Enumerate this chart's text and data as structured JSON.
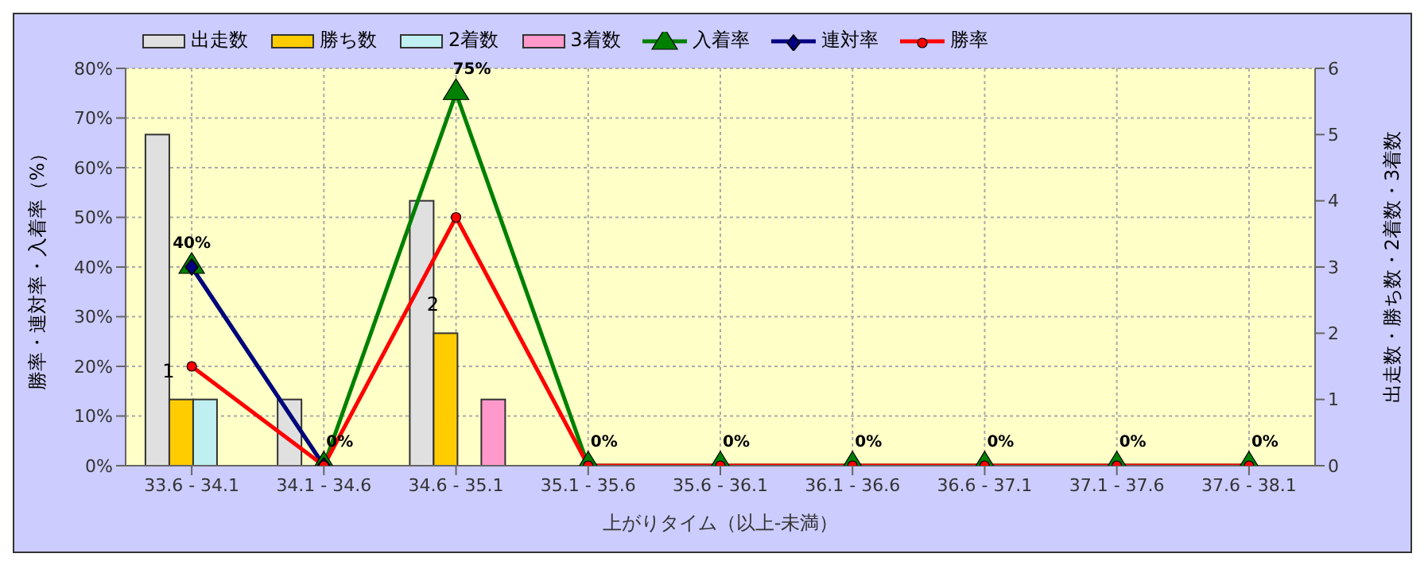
{
  "chart_data": {
    "type": "bar",
    "xlabel": "上がりタイム（以上-未満）",
    "ylabel": "勝率・連対率・入着率（%）",
    "y2label": "出走数・勝ち数・2着数・3着数",
    "categories": [
      "33.6 - 34.1",
      "34.1 - 34.6",
      "34.6 - 35.1",
      "35.1 - 35.6",
      "35.6 - 36.1",
      "36.1 - 36.6",
      "36.6 - 37.1",
      "37.1 - 37.6",
      "37.6 - 38.1"
    ],
    "series": [
      {
        "name": "出走数",
        "axis": "y2",
        "color": "#e0e0e0",
        "values": [
          5,
          1,
          4,
          0,
          0,
          0,
          0,
          0,
          0
        ]
      },
      {
        "name": "勝ち数",
        "axis": "y2",
        "color": "#ffcc00",
        "values": [
          1,
          0,
          2,
          0,
          0,
          0,
          0,
          0,
          0
        ],
        "value_labels": [
          "1",
          null,
          "2",
          null,
          null,
          null,
          null,
          null,
          null
        ]
      },
      {
        "name": "2着数",
        "axis": "y2",
        "color": "#bfeff0",
        "values": [
          1,
          0,
          0,
          0,
          0,
          0,
          0,
          0,
          0
        ]
      },
      {
        "name": "3着数",
        "axis": "y2",
        "color": "#ff99cc",
        "values": [
          0,
          0,
          1,
          0,
          0,
          0,
          0,
          0,
          0
        ]
      },
      {
        "name": "入着率",
        "type": "line",
        "color": "#008000",
        "marker": "triangle",
        "values": [
          40,
          0,
          75,
          0,
          0,
          0,
          0,
          0,
          0
        ],
        "value_labels": [
          null,
          null,
          "75%",
          null,
          null,
          null,
          null,
          null,
          null
        ]
      },
      {
        "name": "連対率",
        "type": "line",
        "color": "#000080",
        "marker": "diamond",
        "values": [
          40,
          0,
          null,
          null,
          null,
          null,
          null,
          null,
          null
        ],
        "value_labels": [
          "40%",
          null,
          null,
          null,
          null,
          null,
          null,
          null,
          null
        ]
      },
      {
        "name": "勝率",
        "type": "line",
        "color": "#ff0000",
        "marker": "circle",
        "values": [
          20,
          0,
          50,
          0,
          0,
          0,
          0,
          0,
          0
        ],
        "value_labels": [
          null,
          "0%",
          null,
          "0%",
          "0%",
          "0%",
          "0%",
          "0%",
          "0%"
        ]
      }
    ],
    "ylim": [
      0,
      80
    ],
    "yticks": [
      {
        "value": 0,
        "label": "0%"
      },
      {
        "value": 10,
        "label": "10%"
      },
      {
        "value": 20,
        "label": "20%"
      },
      {
        "value": 30,
        "label": "30%"
      },
      {
        "value": 40,
        "label": "40%"
      },
      {
        "value": 50,
        "label": "50%"
      },
      {
        "value": 60,
        "label": "60%"
      },
      {
        "value": 70,
        "label": "70%"
      },
      {
        "value": 80,
        "label": "80%"
      }
    ],
    "y2lim": [
      0,
      6
    ],
    "y2ticks": [
      0,
      1,
      2,
      3,
      4,
      5,
      6
    ],
    "grid": true,
    "legend": "top"
  }
}
